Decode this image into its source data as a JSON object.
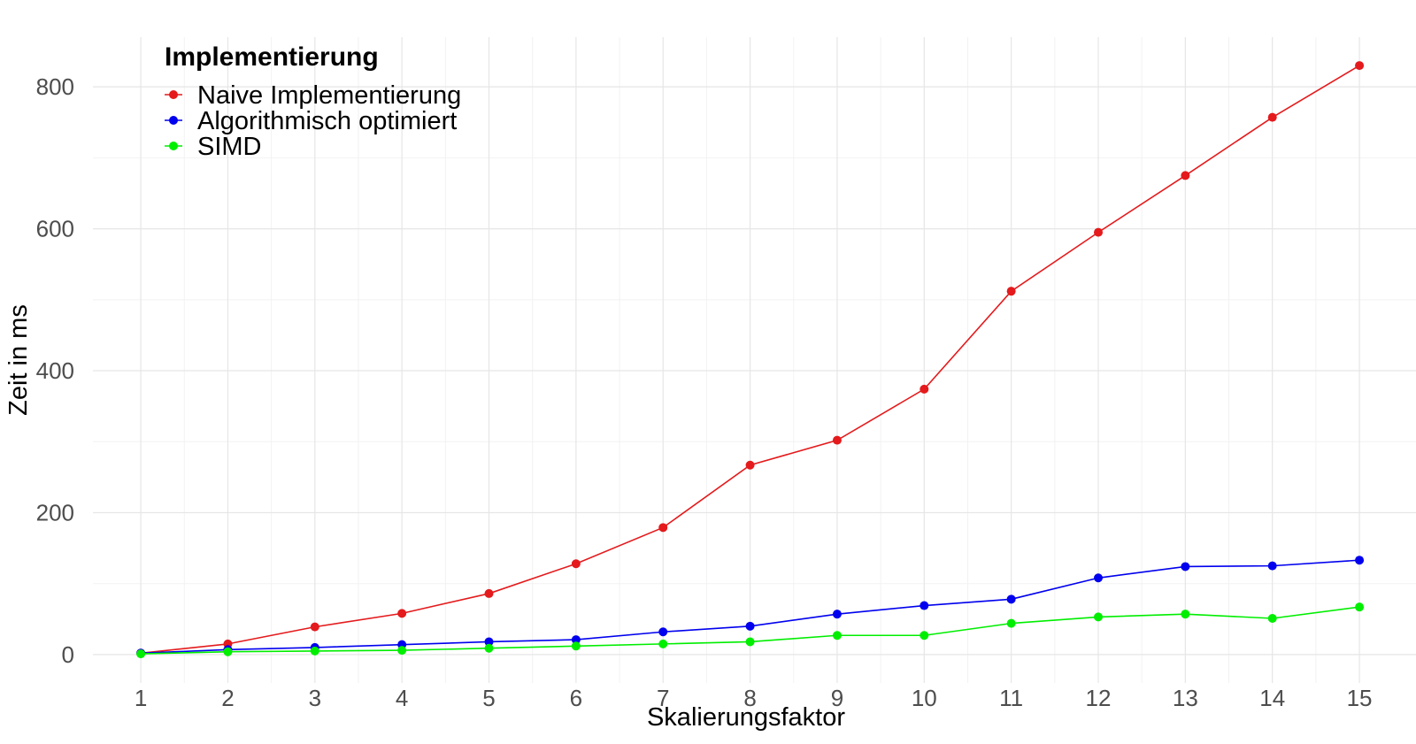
{
  "chart_data": {
    "type": "line",
    "xlabel": "Skalierungsfaktor",
    "ylabel": "Zeit in ms",
    "x": [
      1,
      2,
      3,
      4,
      5,
      6,
      7,
      8,
      9,
      10,
      11,
      12,
      13,
      14,
      15
    ],
    "xlim": [
      0.45,
      15.65
    ],
    "ylim": [
      -40,
      870
    ],
    "y_ticks": [
      0,
      200,
      400,
      600,
      800
    ],
    "grid": true,
    "legend": {
      "title": "Implementierung",
      "placement": "top-left"
    },
    "series": [
      {
        "name": "Naive Implementierung",
        "color": "#e41a1c",
        "values": [
          2,
          15,
          39,
          58,
          86,
          128,
          179,
          267,
          302,
          374,
          512,
          595,
          675,
          757,
          830
        ]
      },
      {
        "name": "Algorithmisch optimiert",
        "color": "#0000ee",
        "values": [
          2,
          7,
          10,
          14,
          18,
          21,
          32,
          40,
          57,
          69,
          78,
          108,
          124,
          125,
          133
        ]
      },
      {
        "name": "SIMD",
        "color": "#00ee00",
        "values": [
          1,
          4,
          5,
          6,
          9,
          12,
          15,
          18,
          27,
          27,
          44,
          53,
          57,
          51,
          67
        ]
      }
    ]
  }
}
